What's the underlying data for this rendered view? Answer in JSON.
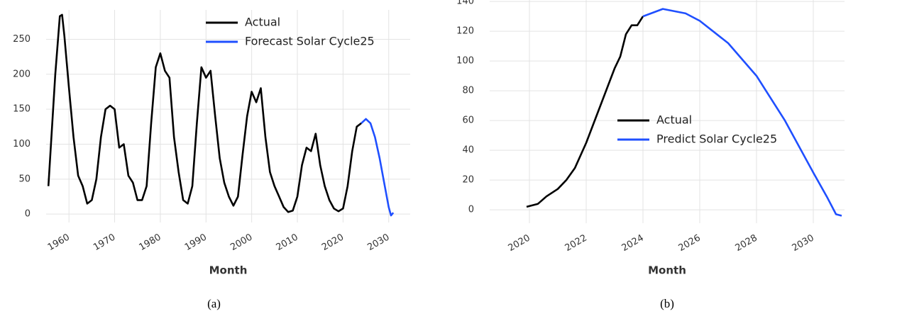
{
  "chart_data": [
    {
      "type": "line",
      "caption": "(a)",
      "x_label": "Month",
      "xlim": [
        1955.0,
        2034.7
      ],
      "xticks": [
        1960,
        1970,
        1980,
        1990,
        2000,
        2010,
        2020,
        2030
      ],
      "ylim": [
        -12,
        292
      ],
      "yticks": [
        0,
        50,
        100,
        150,
        200,
        250
      ],
      "grid": true,
      "legend": "top-center",
      "series": [
        {
          "name": "Actual",
          "color": "#000000",
          "x": [
            1955.5,
            1957,
            1958,
            1958.5,
            1959,
            1960,
            1961,
            1962,
            1963,
            1964,
            1965,
            1966,
            1967,
            1968,
            1969,
            1970,
            1971,
            1972,
            1973,
            1974,
            1975,
            1976,
            1977,
            1978,
            1979,
            1980,
            1981,
            1982,
            1983,
            1984,
            1985,
            1986,
            1987,
            1988,
            1989,
            1990,
            1991,
            1992,
            1993,
            1994,
            1995,
            1996,
            1997,
            1998,
            1999,
            2000,
            2001,
            2002,
            2003,
            2004,
            2005,
            2006,
            2007,
            2008,
            2009,
            2010,
            2011,
            2012,
            2013,
            2014,
            2015,
            2016,
            2017,
            2018,
            2019,
            2020,
            2021,
            2022,
            2023,
            2024
          ],
          "values": [
            40,
            200,
            283,
            285,
            255,
            180,
            110,
            55,
            40,
            15,
            20,
            50,
            110,
            150,
            155,
            150,
            95,
            100,
            55,
            45,
            20,
            20,
            40,
            130,
            210,
            230,
            205,
            195,
            110,
            60,
            20,
            15,
            40,
            130,
            210,
            195,
            205,
            140,
            80,
            45,
            25,
            12,
            25,
            85,
            140,
            175,
            160,
            180,
            110,
            60,
            40,
            25,
            10,
            3,
            5,
            25,
            70,
            95,
            90,
            115,
            70,
            40,
            20,
            8,
            4,
            8,
            40,
            90,
            125,
            130
          ]
        },
        {
          "name": "Forecast Solar Cycle25",
          "color": "#1f4fff",
          "x": [
            2024,
            2025,
            2026,
            2027,
            2028,
            2029,
            2030,
            2030.5,
            2031
          ],
          "values": [
            130,
            136,
            130,
            110,
            80,
            45,
            10,
            -2,
            2
          ]
        }
      ]
    },
    {
      "type": "line",
      "caption": "(b)",
      "x_label": "Month",
      "xlim": [
        2018.6,
        2031.1
      ],
      "xticks": [
        2020,
        2022,
        2024,
        2026,
        2028,
        2030
      ],
      "ylim": [
        -9,
        141
      ],
      "yticks": [
        0,
        20,
        40,
        60,
        80,
        100,
        120,
        140
      ],
      "grid": true,
      "legend": "center-left",
      "series": [
        {
          "name": "Actual",
          "color": "#000000",
          "x": [
            2019.9,
            2020.3,
            2020.6,
            2021,
            2021.3,
            2021.6,
            2022,
            2022.3,
            2022.7,
            2023,
            2023.2,
            2023.4,
            2023.6,
            2023.8,
            2024
          ],
          "values": [
            2,
            4,
            9,
            14,
            20,
            28,
            45,
            60,
            80,
            95,
            103,
            118,
            124,
            124,
            130
          ]
        },
        {
          "name": "Predict Solar Cycle25",
          "color": "#1f4fff",
          "x": [
            2024,
            2024.7,
            2025.5,
            2026,
            2027,
            2028,
            2029,
            2030,
            2030.5,
            2030.8,
            2031
          ],
          "values": [
            130,
            135,
            132,
            127,
            112,
            90,
            60,
            25,
            8,
            -3,
            -4
          ]
        }
      ]
    }
  ]
}
